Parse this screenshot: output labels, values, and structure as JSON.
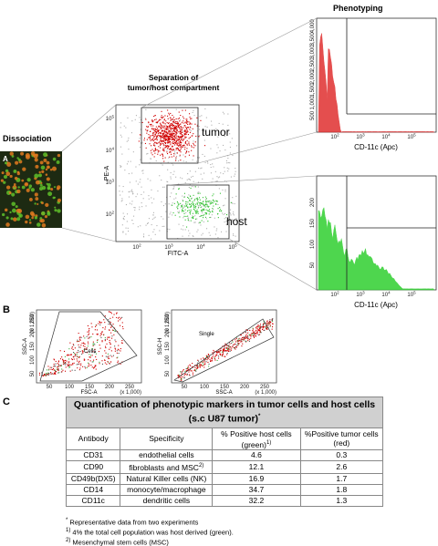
{
  "panel_a": {
    "label": "A",
    "dissociation": "Dissociation",
    "separation": "Separation of tumor/host compartment",
    "phenotyping": "Phenotyping",
    "tumor": "tumor",
    "host": "host",
    "x_axis": "FITC-A",
    "y_axis": "PE-A",
    "log_ticks": [
      {
        "base": "10",
        "exp": "2"
      },
      {
        "base": "10",
        "exp": "3"
      },
      {
        "base": "10",
        "exp": "4"
      },
      {
        "base": "10",
        "exp": "5"
      }
    ],
    "hist_top_y_ticks": [
      "500",
      "1,000",
      "1,500",
      "2,000",
      "2,500",
      "3,000",
      "3,500",
      "4,000"
    ],
    "hist_bottom_y_ticks": [
      "50",
      "100",
      "150",
      "200"
    ],
    "hist_top_x_axis": "CD-11c (Apc)",
    "hist_bottom_x_axis": "CD-11c (Apc)"
  },
  "panel_b": {
    "label": "B",
    "linear_ticks": [
      "50",
      "100",
      "150",
      "200",
      "250"
    ],
    "scale_note": "(x 1,000)",
    "plot1": {
      "x_axis": "FSC-A",
      "y_axis": "SSC-A",
      "gate": "Cells"
    },
    "plot2": {
      "x_axis": "SSC-A",
      "y_axis": "SSC-H",
      "gate": "Single"
    }
  },
  "panel_c": {
    "label": "C",
    "table": {
      "title": "Quantification of phenotypic markers in tumor cells and host cells (s.c U87 tumor)",
      "title_note": "*",
      "header": {
        "antibody": "Antibody",
        "specificity": "Specificity",
        "host": "% Positive host cells (green)",
        "host_note": "1)",
        "tumor": "%Positive tumor cells (red)"
      },
      "rows": [
        {
          "antibody": "CD31",
          "specificity": "endothelial cells",
          "host": 4.6,
          "tumor": 0.3
        },
        {
          "antibody": "CD90",
          "specificity": "fibroblasts and MSC",
          "specificity_note": "2)",
          "host": 12.1,
          "tumor": 2.6
        },
        {
          "antibody": "CD49b(DX5)",
          "specificity": "Natural Killer cells (NK)",
          "host": 16.9,
          "tumor": 1.7
        },
        {
          "antibody": "CD14",
          "specificity": "monocyte/macrophage",
          "host": 34.7,
          "tumor": 1.8
        },
        {
          "antibody": "CD11c",
          "specificity": "dendritic cells",
          "host": 32.2,
          "tumor": 1.3
        }
      ]
    },
    "footnotes": [
      {
        "mark": "*",
        "text": " Representative data from two experiments"
      },
      {
        "mark": "1)",
        "text": " 4% the total cell population was host derived (green)."
      },
      {
        "mark": "2)",
        "text": " Mesenchymal stem cells (MSC)"
      }
    ]
  }
}
